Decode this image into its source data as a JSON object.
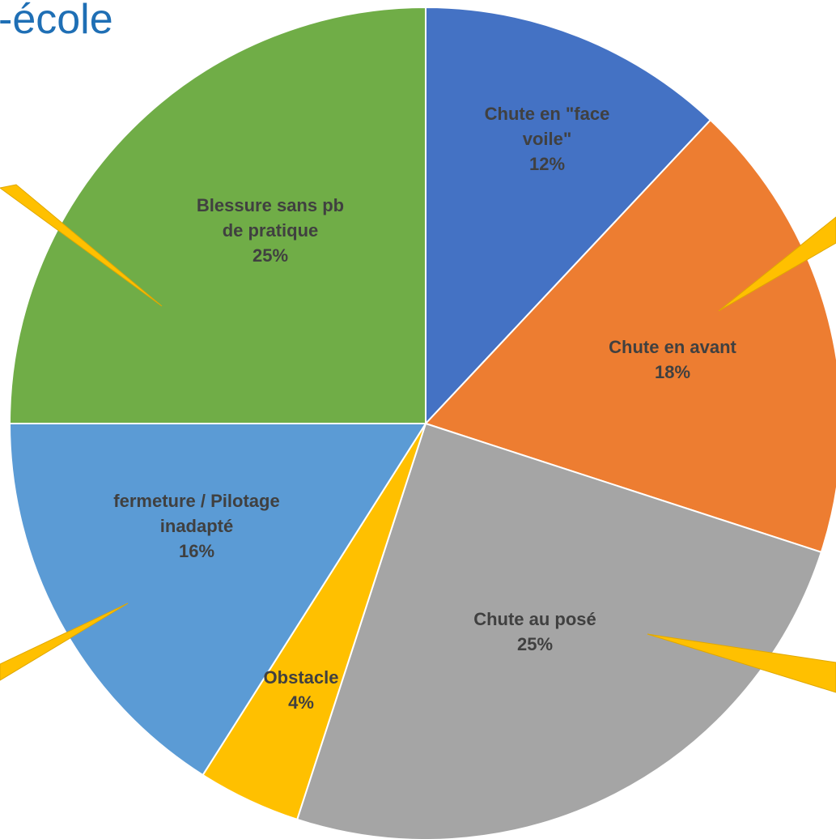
{
  "title": "-école",
  "chart_data": {
    "type": "pie",
    "slices": [
      {
        "label": "Chute en \"face voile\"",
        "label_lines": [
          "Chute en \"face",
          "voile\""
        ],
        "value": 12,
        "pct_label": "12%",
        "color": "#4472c4"
      },
      {
        "label": "Chute en avant",
        "label_lines": [
          "Chute en avant"
        ],
        "value": 18,
        "pct_label": "18%",
        "color": "#ed7d31"
      },
      {
        "label": "Chute au posé",
        "label_lines": [
          "Chute au posé"
        ],
        "value": 25,
        "pct_label": "25%",
        "color": "#a5a5a5"
      },
      {
        "label": "Obstacle",
        "label_lines": [
          "Obstacle"
        ],
        "value": 4,
        "pct_label": "4%",
        "color": "#ffc000"
      },
      {
        "label": "fermeture / Pilotage inadapté",
        "label_lines": [
          "fermeture / Pilotage",
          "inadapté"
        ],
        "value": 16,
        "pct_label": "16%",
        "color": "#5b9bd5"
      },
      {
        "label": "Blessure sans pb de pratique",
        "label_lines": [
          "Blessure sans pb",
          "de pratique"
        ],
        "value": 25,
        "pct_label": "25%",
        "color": "#70ad47"
      }
    ],
    "start_angle_deg": 0,
    "direction": "clockwise",
    "pointer_color": "#ffc000"
  }
}
